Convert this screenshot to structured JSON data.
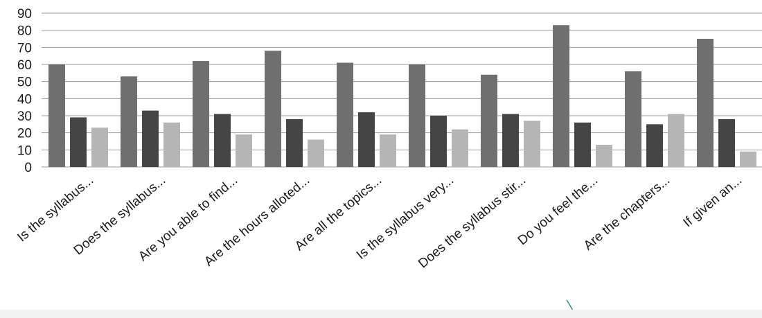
{
  "chart_data": {
    "type": "bar",
    "title": "",
    "xlabel": "",
    "ylabel": "",
    "ylim": [
      0,
      90
    ],
    "yticks": [
      0,
      10,
      20,
      30,
      40,
      50,
      60,
      70,
      80,
      90
    ],
    "grid": true,
    "legend": "none",
    "categories": [
      "Is the syllabus...",
      "Does the syllabus...",
      "Are you able to find...",
      "Are the hours alloted...",
      "Are all the topics...",
      "Is the syllabus very...",
      "Does the syllabus stir...",
      "Do you feel the...",
      "Are the chapters...",
      "If given an..."
    ],
    "series": [
      {
        "color": "#6f6f6f",
        "values": [
          60,
          53,
          62,
          68,
          61,
          60,
          54,
          83,
          56,
          75
        ]
      },
      {
        "color": "#454545",
        "values": [
          29,
          33,
          31,
          28,
          32,
          30,
          31,
          26,
          25,
          28
        ]
      },
      {
        "color": "#b5b5b5",
        "values": [
          23,
          26,
          19,
          16,
          19,
          22,
          27,
          13,
          31,
          9
        ]
      }
    ]
  }
}
